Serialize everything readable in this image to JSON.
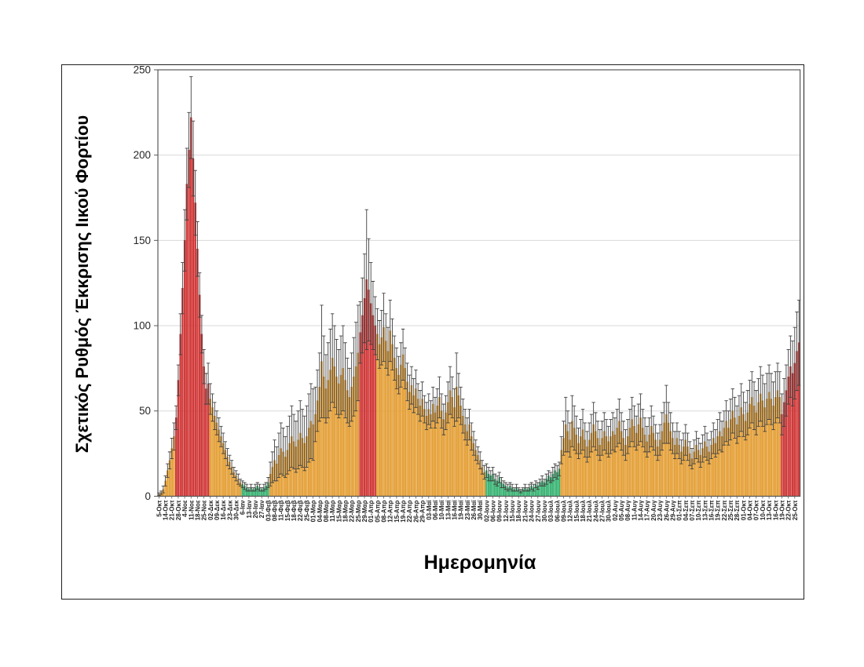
{
  "figure": {
    "y_axis_title": "Σχετικός Ρυθμός Έκκρισης Ιικού Φορτίου",
    "x_axis_title": "Ημερομηνία"
  },
  "chart_data": {
    "type": "bar",
    "title": "",
    "ylabel": "Σχετικός Ρυθμός Έκκρισης Ιικού Φορτίου",
    "xlabel": "Ημερομηνία",
    "ylim": [
      0,
      250
    ],
    "y_ticks": [
      0,
      50,
      100,
      150,
      200,
      250
    ],
    "grid": "horizontal",
    "legend": "none",
    "error_bars": "symmetric",
    "bars_per_label": 3,
    "axis_color": "#595959",
    "grid_color": "#D9D9D9",
    "error_bar_color": "#404040",
    "palette": {
      "red": {
        "fill": "#E23B3B",
        "stroke": "#A92222"
      },
      "orange": {
        "fill": "#F1A83B",
        "stroke": "#C9871E"
      },
      "green": {
        "fill": "#3DBE7B",
        "stroke": "#23985A"
      }
    },
    "color_segments": [
      {
        "start": 0,
        "end": 7,
        "color": "orange"
      },
      {
        "start": 8,
        "end": 23,
        "color": "red"
      },
      {
        "start": 24,
        "end": 38,
        "color": "orange"
      },
      {
        "start": 39,
        "end": 51,
        "color": "green"
      },
      {
        "start": 52,
        "end": 93,
        "color": "orange"
      },
      {
        "start": 94,
        "end": 101,
        "color": "red"
      },
      {
        "start": 102,
        "end": 152,
        "color": "orange"
      },
      {
        "start": 153,
        "end": 187,
        "color": "green"
      },
      {
        "start": 188,
        "end": 290,
        "color": "orange"
      },
      {
        "start": 291,
        "end": 299,
        "color": "red"
      }
    ],
    "x_tick_labels": [
      "5-Οκτ",
      "14-Οκτ",
      "21-Οκτ",
      "28-Οκτ",
      "4-Νοε",
      "11-Νοε",
      "18-Νοε",
      "25-Νοε",
      "02-Δεκ",
      "09-Δεκ",
      "16-Δεκ",
      "23-Δεκ",
      "30-Δεκ",
      "6-Ιαν",
      "13-Ιαν",
      "20-Ιαν",
      "27-Ιαν",
      "03-Φεβ",
      "08-Φεβ",
      "11-Φεβ",
      "15-Φεβ",
      "18-Φεβ",
      "22-Φεβ",
      "25-Φεβ",
      "01-Μαρ",
      "04-Μαρ",
      "08-Μαρ",
      "11-Μαρ",
      "15-Μαρ",
      "18-Μαρ",
      "22-Μαρ",
      "25-Μαρ",
      "29-Μαρ",
      "01-Απρ",
      "05-Απρ",
      "08-Απρ",
      "12-Απρ",
      "15-Απρ",
      "19-Απρ",
      "22-Απρ",
      "26-Απρ",
      "29-Απρ",
      "03-Μαϊ",
      "06-Μαϊ",
      "10-Μαϊ",
      "13-Μαϊ",
      "16-Μαϊ",
      "19-Μαϊ",
      "23-Μαϊ",
      "26-Μαϊ",
      "30-Μαϊ",
      "02-Ιουν",
      "06-Ιουν",
      "09-Ιουν",
      "12-Ιουν",
      "15-Ιουν",
      "18-Ιουν",
      "21-Ιουν",
      "24-Ιουν",
      "27-Ιουν",
      "30-Ιουν",
      "03-Ιουλ",
      "06-Ιουλ",
      "09-Ιουλ",
      "12-Ιουλ",
      "15-Ιουλ",
      "18-Ιουλ",
      "21-Ιουλ",
      "24-Ιουλ",
      "27-Ιουλ",
      "30-Ιουλ",
      "02-Αυγ",
      "05-Αυγ",
      "08-Αυγ",
      "11-Αυγ",
      "14-Αυγ",
      "17-Αυγ",
      "20-Αυγ",
      "23-Αυγ",
      "26-Αυγ",
      "29-Αυγ",
      "01-Σεπ",
      "04-Σεπ",
      "07-Σεπ",
      "10-Σεπ",
      "13-Σεπ",
      "16-Σεπ",
      "19-Σεπ",
      "22-Σεπ",
      "25-Σεπ",
      "28-Σεπ",
      "01-Οκτ",
      "04-Οκτ",
      "07-Οκτ",
      "10-Οκτ",
      "13-Οκτ",
      "16-Οκτ",
      "19-Οκτ",
      "22-Οκτ",
      "25-Οκτ"
    ],
    "values": [
      1,
      2,
      4,
      9,
      15,
      21,
      28,
      35,
      46,
      68,
      95,
      122,
      150,
      183,
      203,
      222,
      198,
      172,
      145,
      118,
      95,
      76,
      63,
      66,
      57,
      52,
      47,
      43,
      39,
      35,
      31,
      27,
      23,
      20,
      17,
      14,
      12,
      10,
      8,
      7,
      6,
      5,
      4,
      5,
      4,
      5,
      6,
      5,
      4,
      5,
      6,
      8,
      13,
      17,
      21,
      19,
      24,
      28,
      26,
      23,
      27,
      31,
      35,
      32,
      29,
      33,
      37,
      34,
      31,
      35,
      40,
      44,
      42,
      48,
      56,
      64,
      79,
      70,
      63,
      68,
      74,
      81,
      76,
      70,
      66,
      71,
      75,
      68,
      62,
      58,
      64,
      70,
      76,
      84,
      96,
      106,
      116,
      127,
      121,
      113,
      106,
      100,
      95,
      89,
      93,
      99,
      91,
      85,
      97,
      89,
      81,
      75,
      71,
      77,
      83,
      75,
      67,
      61,
      65,
      59,
      63,
      57,
      53,
      57,
      51,
      47,
      51,
      48,
      54,
      49,
      53,
      58,
      50,
      45,
      49,
      55,
      62,
      58,
      52,
      64,
      59,
      53,
      47,
      42,
      38,
      42,
      35,
      31,
      27,
      24,
      21,
      17,
      14,
      15,
      13,
      12,
      13,
      10,
      9,
      11,
      8,
      7,
      6,
      5,
      6,
      5,
      4,
      5,
      4,
      3,
      4,
      5,
      4,
      5,
      6,
      5,
      7,
      6,
      8,
      9,
      8,
      10,
      12,
      11,
      13,
      15,
      14,
      16,
      27,
      34,
      42,
      38,
      33,
      44,
      40,
      36,
      31,
      35,
      39,
      33,
      29,
      33,
      37,
      42,
      38,
      34,
      30,
      34,
      38,
      35,
      32,
      35,
      38,
      36,
      40,
      44,
      38,
      34,
      30,
      35,
      40,
      45,
      41,
      37,
      42,
      46,
      40,
      36,
      32,
      36,
      41,
      37,
      33,
      29,
      33,
      38,
      43,
      48,
      43,
      38,
      34,
      30,
      34,
      30,
      26,
      29,
      33,
      29,
      25,
      22,
      26,
      30,
      27,
      24,
      28,
      32,
      29,
      26,
      30,
      34,
      31,
      35,
      38,
      35,
      40,
      44,
      40,
      45,
      50,
      46,
      42,
      47,
      52,
      48,
      44,
      49,
      54,
      58,
      53,
      49,
      55,
      60,
      56,
      52,
      57,
      61,
      57,
      53,
      58,
      62,
      58,
      48,
      55,
      62,
      70,
      76,
      72,
      78,
      85,
      90
    ],
    "errors": [
      1,
      1,
      2,
      3,
      4,
      5,
      6,
      8,
      7,
      9,
      12,
      15,
      18,
      21,
      22,
      24,
      22,
      19,
      16,
      13,
      11,
      10,
      9,
      12,
      9,
      8,
      8,
      7,
      7,
      6,
      6,
      5,
      5,
      4,
      4,
      3,
      3,
      3,
      2,
      2,
      2,
      2,
      1,
      2,
      1,
      2,
      2,
      2,
      1,
      2,
      2,
      3,
      7,
      9,
      12,
      10,
      13,
      15,
      14,
      12,
      14,
      16,
      18,
      16,
      15,
      17,
      19,
      17,
      16,
      18,
      20,
      22,
      21,
      16,
      18,
      20,
      33,
      24,
      20,
      22,
      24,
      26,
      24,
      22,
      20,
      23,
      25,
      22,
      19,
      17,
      20,
      23,
      26,
      28,
      18,
      22,
      26,
      41,
      30,
      24,
      20,
      17,
      15,
      14,
      16,
      20,
      16,
      14,
      18,
      15,
      13,
      12,
      11,
      13,
      15,
      12,
      11,
      10,
      11,
      10,
      11,
      9,
      9,
      10,
      8,
      8,
      9,
      8,
      10,
      9,
      10,
      12,
      10,
      9,
      10,
      12,
      14,
      12,
      11,
      20,
      13,
      11,
      10,
      9,
      8,
      9,
      8,
      7,
      6,
      5,
      5,
      4,
      4,
      4,
      4,
      3,
      4,
      3,
      3,
      3,
      3,
      2,
      2,
      2,
      2,
      2,
      1,
      2,
      1,
      1,
      1,
      2,
      1,
      2,
      2,
      2,
      2,
      2,
      2,
      3,
      2,
      3,
      3,
      3,
      4,
      4,
      4,
      4,
      8,
      10,
      16,
      12,
      10,
      15,
      13,
      11,
      9,
      10,
      12,
      10,
      9,
      10,
      11,
      13,
      11,
      10,
      9,
      10,
      11,
      10,
      9,
      10,
      11,
      10,
      11,
      13,
      11,
      10,
      9,
      10,
      11,
      13,
      12,
      10,
      12,
      14,
      11,
      10,
      9,
      10,
      12,
      10,
      9,
      8,
      9,
      11,
      12,
      17,
      12,
      11,
      9,
      8,
      9,
      8,
      7,
      8,
      9,
      8,
      7,
      6,
      7,
      8,
      7,
      7,
      8,
      9,
      8,
      7,
      8,
      9,
      8,
      10,
      11,
      9,
      10,
      12,
      10,
      12,
      13,
      12,
      11,
      12,
      14,
      13,
      11,
      13,
      14,
      15,
      14,
      13,
      14,
      16,
      15,
      14,
      15,
      16,
      15,
      14,
      15,
      16,
      15,
      12,
      14,
      15,
      16,
      18,
      19,
      21,
      23,
      25
    ]
  }
}
